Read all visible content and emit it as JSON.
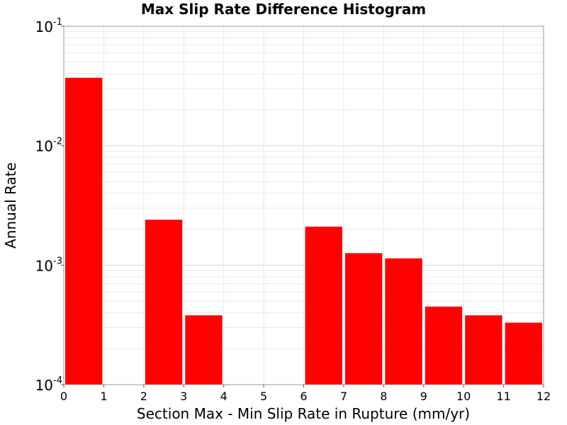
{
  "chart_data": {
    "type": "bar",
    "title": "Max Slip Rate Difference Histogram",
    "xlabel": "Section Max - Min Slip Rate in Rupture (mm/yr)",
    "ylabel": "Annual Rate",
    "x_scale": "linear",
    "y_scale": "log",
    "xlim": [
      0,
      12
    ],
    "ylim": [
      0.0001,
      0.1
    ],
    "x_ticks": [
      "0",
      "1",
      "2",
      "3",
      "4",
      "5",
      "6",
      "7",
      "8",
      "9",
      "10",
      "11",
      "12"
    ],
    "y_ticks": [
      {
        "base": "10",
        "exp": "-4"
      },
      {
        "base": "10",
        "exp": "-3"
      },
      {
        "base": "10",
        "exp": "-2"
      },
      {
        "base": "10",
        "exp": "-1"
      }
    ],
    "bar_color": "#ff0000",
    "grid": true,
    "bins": [
      {
        "x_start": 0,
        "x_end": 1,
        "value": 0.037
      },
      {
        "x_start": 1,
        "x_end": 2,
        "value": 0
      },
      {
        "x_start": 2,
        "x_end": 3,
        "value": 0.0024
      },
      {
        "x_start": 3,
        "x_end": 4,
        "value": 0.00038
      },
      {
        "x_start": 4,
        "x_end": 5,
        "value": 0
      },
      {
        "x_start": 5,
        "x_end": 6,
        "value": 0
      },
      {
        "x_start": 6,
        "x_end": 7,
        "value": 0.0021
      },
      {
        "x_start": 7,
        "x_end": 8,
        "value": 0.00126
      },
      {
        "x_start": 8,
        "x_end": 9,
        "value": 0.00114
      },
      {
        "x_start": 9,
        "x_end": 10,
        "value": 0.00045
      },
      {
        "x_start": 10,
        "x_end": 11,
        "value": 0.00038
      },
      {
        "x_start": 11,
        "x_end": 12,
        "value": 0.00033
      }
    ]
  }
}
